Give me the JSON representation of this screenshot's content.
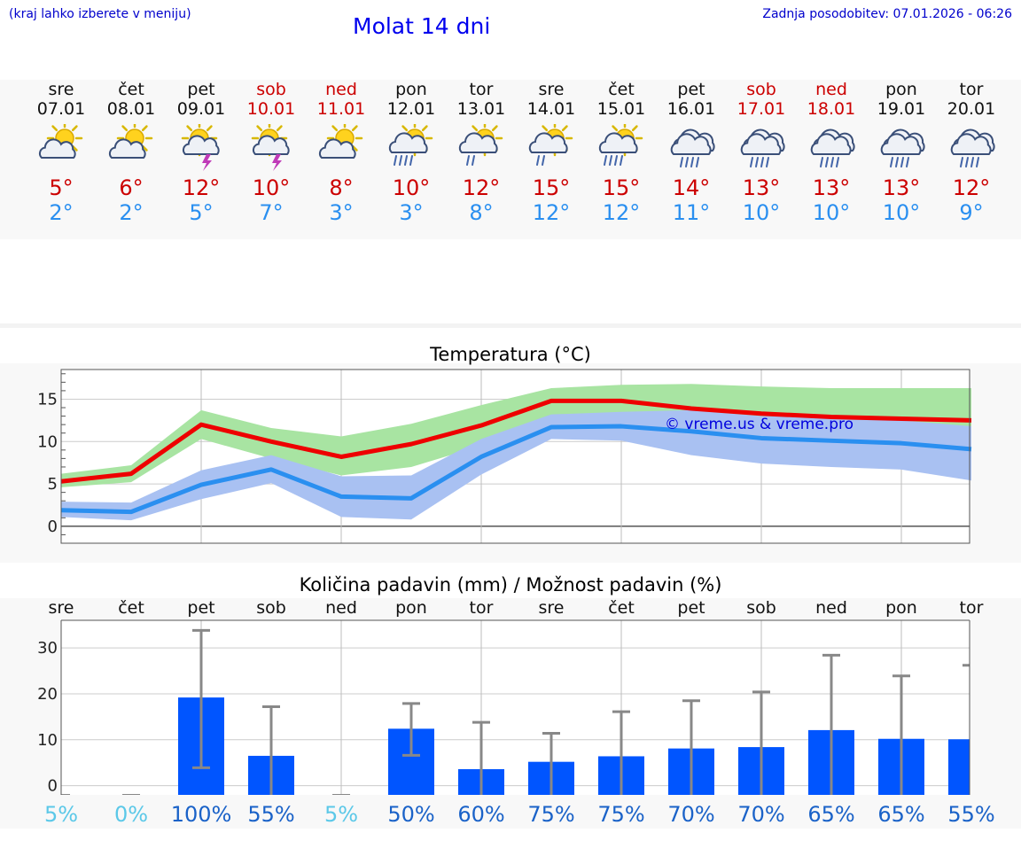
{
  "header": {
    "note": "(kraj lahko izberete v meniju)",
    "title": "Molat 14 dni",
    "update": "Zadnja posodobitev: 07.01.2026 - 06:26"
  },
  "days": [
    {
      "name": "sre",
      "date": "07.01",
      "weekend": false,
      "icon": "partly-cloudy-icon",
      "tmax": "5°",
      "tmin": "2°"
    },
    {
      "name": "čet",
      "date": "08.01",
      "weekend": false,
      "icon": "partly-cloudy-icon",
      "tmax": "6°",
      "tmin": "2°"
    },
    {
      "name": "pet",
      "date": "09.01",
      "weekend": false,
      "icon": "sun-thunderstorm-icon",
      "tmax": "12°",
      "tmin": "5°"
    },
    {
      "name": "sob",
      "date": "10.01",
      "weekend": true,
      "icon": "sun-thunderstorm-icon",
      "tmax": "10°",
      "tmin": "7°"
    },
    {
      "name": "ned",
      "date": "11.01",
      "weekend": true,
      "icon": "partly-cloudy-icon",
      "tmax": "8°",
      "tmin": "3°"
    },
    {
      "name": "pon",
      "date": "12.01",
      "weekend": false,
      "icon": "sun-rain-icon",
      "tmax": "10°",
      "tmin": "3°"
    },
    {
      "name": "tor",
      "date": "13.01",
      "weekend": false,
      "icon": "sun-light-rain-icon",
      "tmax": "12°",
      "tmin": "8°"
    },
    {
      "name": "sre",
      "date": "14.01",
      "weekend": false,
      "icon": "sun-light-rain-icon",
      "tmax": "15°",
      "tmin": "12°"
    },
    {
      "name": "čet",
      "date": "15.01",
      "weekend": false,
      "icon": "sun-rain-icon",
      "tmax": "15°",
      "tmin": "12°"
    },
    {
      "name": "pet",
      "date": "16.01",
      "weekend": false,
      "icon": "rain-cloud-icon",
      "tmax": "14°",
      "tmin": "11°"
    },
    {
      "name": "sob",
      "date": "17.01",
      "weekend": true,
      "icon": "rain-cloud-icon",
      "tmax": "13°",
      "tmin": "10°"
    },
    {
      "name": "ned",
      "date": "18.01",
      "weekend": true,
      "icon": "rain-cloud-icon",
      "tmax": "13°",
      "tmin": "10°"
    },
    {
      "name": "pon",
      "date": "19.01",
      "weekend": false,
      "icon": "rain-cloud-icon",
      "tmax": "13°",
      "tmin": "10°"
    },
    {
      "name": "tor",
      "date": "20.01",
      "weekend": false,
      "icon": "rain-cloud-icon",
      "tmax": "12°",
      "tmin": "9°"
    }
  ],
  "colors": {
    "max_line": "#ee0000",
    "min_line": "#2a8ff0",
    "max_band": "#a8e4a2",
    "min_band": "#a9c1f2",
    "overlap_band": "#84c4b2",
    "bar": "#0055ff",
    "whisker": "#888888",
    "prob_low": "#5bc8e8",
    "prob_high": "#1a62c8"
  },
  "chart_data": [
    {
      "type": "line",
      "title": "Temperatura (°C)",
      "x": [
        "07.01",
        "08.01",
        "09.01",
        "10.01",
        "11.01",
        "12.01",
        "13.01",
        "14.01",
        "15.01",
        "16.01",
        "17.01",
        "18.01",
        "19.01",
        "20.01"
      ],
      "ylim": [
        -2,
        18.5
      ],
      "yticks": [
        0,
        5,
        10,
        15
      ],
      "annotation": "© vreme.us & vreme.pro",
      "series": [
        {
          "name": "max",
          "values": [
            5.3,
            6.2,
            12.0,
            10.0,
            8.2,
            9.7,
            11.9,
            14.8,
            14.8,
            13.9,
            13.3,
            12.9,
            12.7,
            12.5
          ],
          "band_low": [
            4.6,
            5.2,
            10.3,
            8.0,
            6.0,
            7.0,
            9.5,
            12.0,
            12.4,
            11.9,
            11.3,
            10.5,
            9.9,
            9.2
          ],
          "band_high": [
            6.2,
            7.2,
            13.7,
            11.6,
            10.6,
            12.1,
            14.3,
            16.3,
            16.7,
            16.8,
            16.5,
            16.3,
            16.3,
            16.3
          ]
        },
        {
          "name": "min",
          "values": [
            1.9,
            1.7,
            4.9,
            6.7,
            3.5,
            3.3,
            8.2,
            11.7,
            11.8,
            11.2,
            10.4,
            10.1,
            9.8,
            9.1
          ],
          "band_low": [
            1.1,
            0.7,
            3.2,
            5.1,
            1.1,
            0.8,
            6.1,
            10.3,
            10.1,
            8.4,
            7.4,
            7.0,
            6.7,
            5.4
          ],
          "band_high": [
            2.9,
            2.8,
            6.6,
            8.4,
            5.9,
            6.0,
            10.3,
            13.2,
            13.5,
            13.7,
            13.0,
            12.9,
            12.5,
            11.8
          ]
        }
      ]
    },
    {
      "type": "bar",
      "title": "Količina padavin (mm) / Možnost padavin (%)",
      "categories": [
        "sre",
        "čet",
        "pet",
        "sob",
        "ned",
        "pon",
        "tor",
        "sre",
        "čet",
        "pet",
        "sob",
        "ned",
        "pon",
        "tor"
      ],
      "ylim": [
        -2,
        36
      ],
      "yticks": [
        0,
        10,
        20,
        30
      ],
      "values": [
        0,
        0,
        19.2,
        6.5,
        0,
        12.4,
        3.6,
        5.2,
        6.4,
        8.1,
        8.4,
        12.1,
        10.2,
        10.1
      ],
      "error_low": [
        0,
        0,
        3.9,
        0,
        0,
        6.6,
        0,
        0,
        0,
        0,
        0,
        0,
        0,
        0
      ],
      "error_high": [
        0,
        0,
        33.8,
        17.2,
        0,
        17.9,
        13.8,
        11.4,
        16.1,
        18.5,
        20.4,
        28.4,
        23.9,
        26.2
      ],
      "probability": [
        "5%",
        "0%",
        "100%",
        "55%",
        "5%",
        "50%",
        "60%",
        "75%",
        "75%",
        "70%",
        "70%",
        "65%",
        "65%",
        "55%"
      ]
    }
  ]
}
